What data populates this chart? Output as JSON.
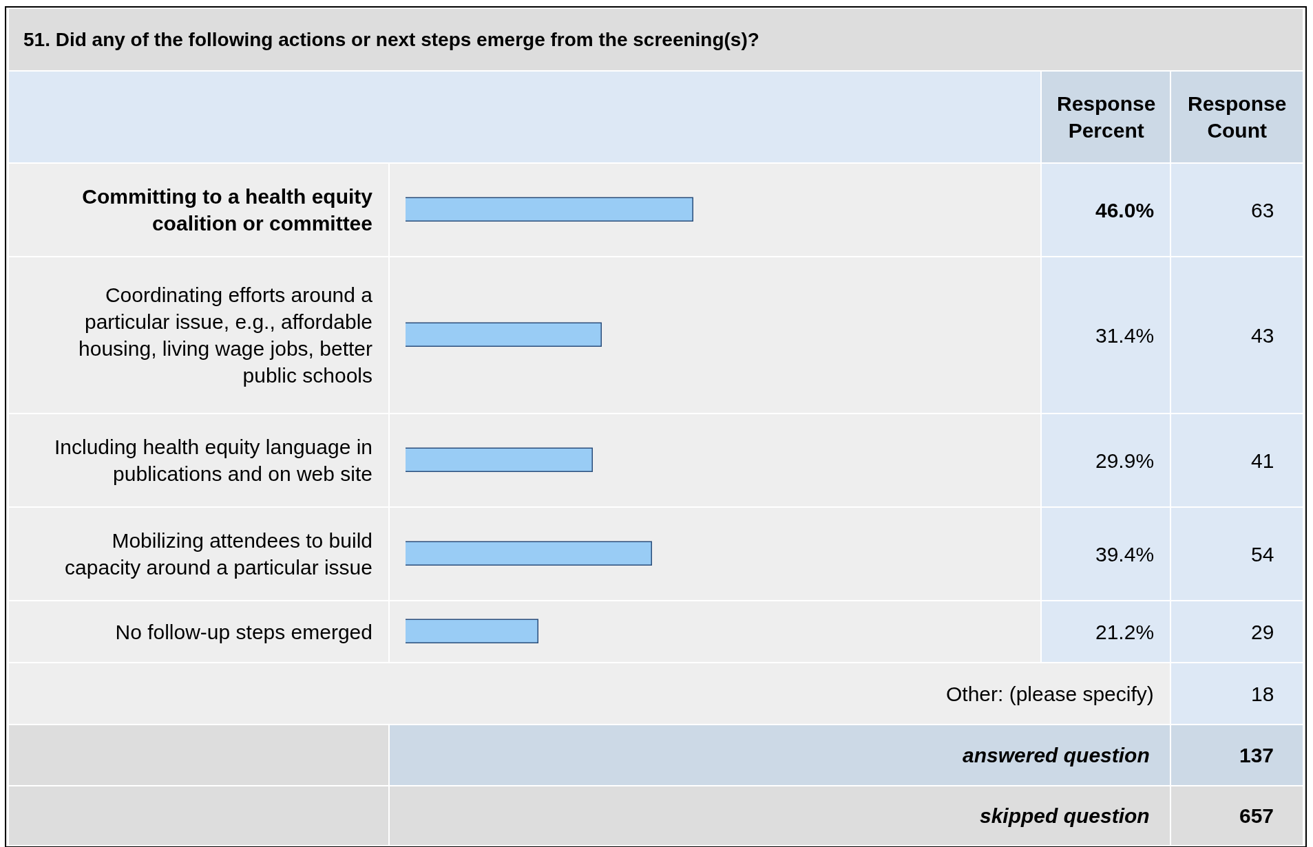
{
  "chart_data": {
    "type": "bar",
    "orientation": "horizontal",
    "title": "51. Did any of the following actions or next steps emerge from the screening(s)?",
    "categories": [
      "Committing to a health equity coalition or committee",
      "Coordinating efforts around a particular issue, e.g., affordable housing, living wage jobs, better public schools",
      "Including health equity language in publications and on web site",
      "Mobilizing attendees to build capacity around a particular issue",
      "No follow-up steps emerged"
    ],
    "values": [
      46.0,
      31.4,
      29.9,
      39.4,
      21.2
    ],
    "value_labels": [
      "46.0%",
      "31.4%",
      "29.9%",
      "39.4%",
      "21.2%"
    ],
    "color": "#99ccf5",
    "annotations": [
      "Response Percent",
      "Response Count",
      "63",
      "43",
      "41",
      "54",
      "29",
      "Other: (please specify)",
      "18",
      "answered question",
      "137",
      "skipped question",
      "657"
    ]
  }
}
